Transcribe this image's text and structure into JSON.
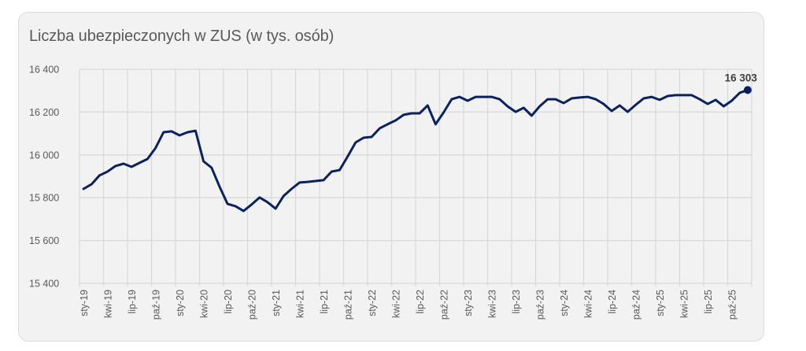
{
  "title": "Liczba ubezpieczonych w ZUS (w tys. osób)",
  "colors": {
    "line": "#0b2260",
    "grid": "#d9d9d9",
    "card_bg": "#f2f2f2",
    "text": "#595959"
  },
  "chart_data": {
    "type": "line",
    "title": "Liczba ubezpieczonych w ZUS (w tys. osób)",
    "xlabel": "",
    "ylabel": "",
    "ylim": [
      15400,
      16400
    ],
    "yticks": [
      15400,
      15600,
      15800,
      16000,
      16200,
      16400
    ],
    "ytick_labels": [
      "15 400",
      "15 600",
      "15 800",
      "16 000",
      "16 200",
      "16 400"
    ],
    "grid": true,
    "legend": null,
    "xtick_labels": [
      "sty-19",
      "kwi-19",
      "lip-19",
      "paź-19",
      "sty-20",
      "kwi-20",
      "lip-20",
      "paź-20",
      "sty-21",
      "kwi-21",
      "lip-21",
      "paź-21",
      "sty-22",
      "kwi-22",
      "lip-22",
      "paź-22",
      "sty-23",
      "kwi-23",
      "lip-23",
      "paź-23",
      "sty-24",
      "kwi-24",
      "lip-24",
      "paź-24",
      "sty-25",
      "kwi-25",
      "lip-25",
      "paź-25"
    ],
    "x_start": "sty-19",
    "x_end": "gru-25",
    "frequency": "monthly",
    "annotation": {
      "label": "16 303",
      "value": 16303,
      "at": "last"
    },
    "series": [
      {
        "name": "Liczba ubezpieczonych",
        "values": [
          15841,
          15863,
          15904,
          15922,
          15948,
          15959,
          15944,
          15963,
          15981,
          16032,
          16106,
          16110,
          16091,
          16106,
          16113,
          15970,
          15940,
          15852,
          15771,
          15760,
          15738,
          15768,
          15801,
          15779,
          15749,
          15808,
          15841,
          15871,
          15874,
          15878,
          15882,
          15922,
          15929,
          15992,
          16058,
          16080,
          16084,
          16124,
          16143,
          16161,
          16187,
          16194,
          16194,
          16231,
          16143,
          16198,
          16260,
          16271,
          16253,
          16271,
          16271,
          16271,
          16260,
          16227,
          16201,
          16220,
          16183,
          16227,
          16260,
          16260,
          16242,
          16264,
          16268,
          16271,
          16260,
          16238,
          16205,
          16231,
          16201,
          16234,
          16264,
          16271,
          16257,
          16275,
          16279,
          16279,
          16279,
          16260,
          16238,
          16257,
          16227,
          16253,
          16290,
          16303
        ]
      }
    ]
  }
}
